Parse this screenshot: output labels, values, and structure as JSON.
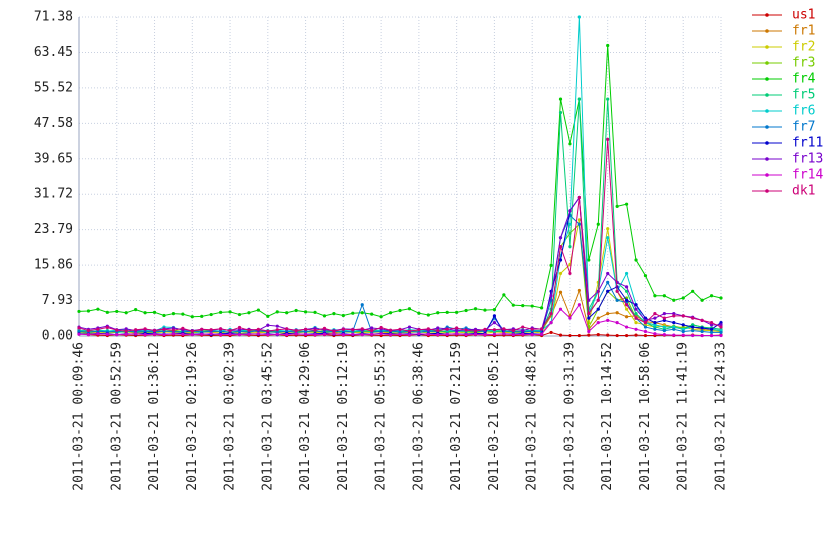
{
  "chart_data": {
    "type": "line",
    "categories": [
      "2011-03-21 00:09:46",
      null,
      null,
      null,
      "2011-03-21 00:52:59",
      null,
      null,
      null,
      "2011-03-21 01:36:12",
      null,
      null,
      null,
      "2011-03-21 02:19:26",
      null,
      null,
      null,
      "2011-03-21 03:02:39",
      null,
      null,
      null,
      "2011-03-21 03:45:52",
      null,
      null,
      null,
      "2011-03-21 04:29:06",
      null,
      null,
      null,
      "2011-03-21 05:12:19",
      null,
      null,
      null,
      "2011-03-21 05:55:32",
      null,
      null,
      null,
      "2011-03-21 06:38:46",
      null,
      null,
      null,
      "2011-03-21 07:21:59",
      null,
      null,
      null,
      "2011-03-21 08:05:12",
      null,
      null,
      null,
      "2011-03-21 08:48:26",
      null,
      null,
      null,
      "2011-03-21 09:31:39",
      null,
      null,
      null,
      "2011-03-21 10:14:52",
      null,
      null,
      null,
      "2011-03-21 10:58:06",
      null,
      null,
      null,
      "2011-03-21 11:41:19",
      null,
      null,
      null,
      "2011-03-21 12:24:33"
    ],
    "ylim": [
      0,
      71.38
    ],
    "yticks": [
      {
        "value": 0,
        "label": "0.00"
      },
      7.93,
      15.86,
      23.79,
      31.72,
      39.65,
      47.58,
      55.52,
      63.45,
      71.38
    ],
    "grid": true,
    "legend": "right",
    "series": [
      {
        "name": "us1",
        "color": "#cc0000",
        "values": [
          1.5,
          0.3,
          0.2,
          0.1,
          0.3,
          0.2,
          0.1,
          0.2,
          0.3,
          0.1,
          0.2,
          0.1,
          0.3,
          0.2,
          0.1,
          0.2,
          0.1,
          0.3,
          0.2,
          0.1,
          0.2,
          0.3,
          0.1,
          0.2,
          0.1,
          0.2,
          0.3,
          0.1,
          0.2,
          0.1,
          0.3,
          0.2,
          0.1,
          0.2,
          0.1,
          0.2,
          0.3,
          0.1,
          0.2,
          0.1,
          0.2,
          0.1,
          0.3,
          0.2,
          0.1,
          0.2,
          0.1,
          0.2,
          0.3,
          0.1,
          0.8,
          0.2,
          0.1,
          0.1,
          0.2,
          0.3,
          0.2,
          0.1,
          0.1,
          0.2,
          0.1,
          0.1,
          0.2,
          0.1,
          0.1,
          0.2,
          0.1,
          0.1,
          0.2
        ]
      },
      {
        "name": "fr1",
        "color": "#cc7700",
        "values": [
          1.2,
          1.0,
          0.8,
          1.1,
          0.9,
          1.3,
          0.7,
          1.0,
          1.2,
          0.9,
          1.1,
          0.8,
          1.0,
          1.2,
          0.9,
          1.1,
          0.7,
          1.0,
          1.3,
          0.9,
          1.0,
          1.2,
          0.8,
          1.1,
          0.9,
          1.0,
          1.2,
          0.8,
          1.1,
          1.0,
          0.9,
          1.2,
          1.0,
          0.8,
          1.1,
          1.3,
          0.9,
          1.0,
          1.2,
          0.8,
          1.0,
          1.1,
          0.9,
          1.2,
          1.0,
          0.8,
          1.1,
          1.0,
          0.9,
          1.2,
          4.5,
          9.8,
          4.5,
          10.2,
          1.5,
          4,
          5,
          5.2,
          4.3,
          4.5,
          3.2,
          3,
          2.5,
          2,
          1.8,
          2,
          1.5,
          1.2,
          1.0
        ]
      },
      {
        "name": "fr2",
        "color": "#cccc00",
        "values": [
          0.8,
          0.6,
          0.9,
          0.7,
          0.8,
          1.0,
          0.6,
          0.8,
          0.7,
          0.9,
          0.8,
          0.6,
          0.7,
          0.9,
          0.8,
          0.7,
          1.0,
          0.6,
          0.8,
          0.7,
          0.9,
          0.8,
          0.6,
          0.7,
          0.9,
          0.8,
          0.7,
          0.6,
          0.9,
          0.8,
          0.7,
          0.8,
          0.9,
          0.6,
          0.7,
          0.8,
          0.9,
          0.7,
          0.6,
          0.8,
          0.9,
          0.7,
          0.8,
          0.6,
          0.9,
          0.8,
          0.7,
          0.8,
          0.9,
          0.7,
          3,
          14,
          16,
          26,
          3,
          12,
          24,
          10,
          6,
          3,
          2.5,
          2,
          2.3,
          1.8,
          2,
          1.5,
          1.3,
          1.2,
          1
        ]
      },
      {
        "name": "fr3",
        "color": "#77cc00",
        "values": [
          1.0,
          1.2,
          0.9,
          1.1,
          1.0,
          0.8,
          1.2,
          1.0,
          0.9,
          1.1,
          1.3,
          1.0,
          0.9,
          1.1,
          1.2,
          1.0,
          0.8,
          1.1,
          1.0,
          1.2,
          0.9,
          1.1,
          1.0,
          1.3,
          0.9,
          1.0,
          1.1,
          1.2,
          0.9,
          1.0,
          1.1,
          1.0,
          1.2,
          0.9,
          1.1,
          1.0,
          1.3,
          1.0,
          0.9,
          1.1,
          1.0,
          1.2,
          0.9,
          1.1,
          1.0,
          1.2,
          1.0,
          0.9,
          1.1,
          1.0,
          5,
          20,
          23,
          25,
          2,
          6,
          10,
          8,
          8.5,
          4,
          3,
          2.5,
          2,
          2.2,
          1.8,
          2.5,
          2,
          1.5,
          1.2
        ]
      },
      {
        "name": "fr4",
        "color": "#00cc00",
        "values": [
          5.5,
          5.6,
          6.0,
          5.3,
          5.5,
          5.2,
          5.9,
          5.2,
          5.3,
          4.6,
          5.0,
          4.9,
          4.3,
          4.4,
          4.8,
          5.3,
          5.4,
          4.8,
          5.2,
          5.8,
          4.4,
          5.4,
          5.2,
          5.7,
          5.4,
          5.3,
          4.5,
          5.0,
          4.6,
          5.1,
          5.2,
          4.9,
          4.3,
          5.2,
          5.7,
          6.1,
          5.1,
          4.7,
          5.2,
          5.3,
          5.3,
          5.7,
          6.1,
          5.8,
          5.9,
          9.2,
          6.9,
          6.8,
          6.7,
          6.3,
          15.8,
          53,
          43,
          53,
          17,
          25,
          65,
          29,
          29.5,
          17,
          13.5,
          9,
          9,
          8,
          8.5,
          10,
          8,
          9,
          8.5
        ]
      },
      {
        "name": "fr5",
        "color": "#00cc77",
        "values": [
          1.0,
          0.9,
          1.1,
          1.2,
          0.8,
          1.0,
          1.1,
          0.9,
          1.0,
          1.2,
          0.9,
          1.1,
          1.0,
          0.8,
          1.2,
          1.0,
          0.9,
          1.1,
          1.0,
          1.2,
          0.9,
          1.0,
          1.1,
          0.8,
          1.0,
          1.2,
          0.9,
          1.1,
          1.0,
          0.9,
          1.1,
          1.0,
          1.2,
          0.9,
          1.0,
          1.1,
          0.8,
          1.0,
          1.2,
          0.9,
          1.1,
          1.0,
          0.9,
          1.2,
          1.0,
          1.1,
          0.9,
          1.0,
          1.2,
          1.1,
          6,
          50,
          20,
          53,
          6,
          10,
          53,
          12,
          10,
          5,
          3,
          2,
          1.5,
          2,
          1.5,
          2.5,
          2,
          1.8,
          1.5
        ]
      },
      {
        "name": "fr6",
        "color": "#00cccc",
        "values": [
          1.3,
          1.2,
          1.4,
          1.1,
          1.3,
          1.5,
          1.2,
          1.3,
          1.1,
          2.0,
          1.9,
          1.3,
          1.2,
          1.4,
          1.3,
          1.1,
          1.5,
          1.2,
          1.3,
          1.4,
          1.2,
          1.3,
          1.1,
          1.4,
          1.3,
          1.9,
          1.2,
          1.4,
          1.3,
          1.1,
          1.3,
          1.4,
          1.2,
          1.3,
          1.1,
          1.4,
          1.3,
          1.2,
          1.5,
          1.3,
          1.1,
          1.2,
          1.4,
          1.3,
          1.2,
          1.5,
          1.3,
          1.4,
          1.2,
          1.3,
          3,
          18,
          25,
          71.38,
          5,
          10,
          22,
          10,
          14,
          7,
          3,
          2.5,
          2,
          2,
          1.5,
          2,
          1.8,
          1.5,
          1.2
        ]
      },
      {
        "name": "fr7",
        "color": "#0077cc",
        "values": [
          1.0,
          0.8,
          1.1,
          0.9,
          1.0,
          1.2,
          0.8,
          1.0,
          0.9,
          1.1,
          1.0,
          0.8,
          1.2,
          0.9,
          1.0,
          1.1,
          0.8,
          1.0,
          0.9,
          1.2,
          1.0,
          0.8,
          1.1,
          0.9,
          1.0,
          1.2,
          0.8,
          1.0,
          0.9,
          1.1,
          7.0,
          0.9,
          1.0,
          1.2,
          0.8,
          1.0,
          0.9,
          1.1,
          1.0,
          2.0,
          1.5,
          1.8,
          1.2,
          1.0,
          4.0,
          1.2,
          1.0,
          0.9,
          1.1,
          1.0,
          8,
          22,
          27,
          25,
          5,
          8,
          12,
          8,
          7.5,
          4,
          2,
          1.5,
          1.2,
          1.5,
          1,
          1.2,
          1,
          0.8,
          0.8
        ]
      },
      {
        "name": "fr11",
        "color": "#0000cc",
        "values": [
          0.5,
          0.4,
          0.6,
          0.5,
          0.3,
          0.5,
          0.4,
          0.6,
          0.5,
          0.4,
          0.5,
          0.6,
          0.4,
          0.5,
          0.3,
          0.5,
          0.6,
          0.4,
          0.5,
          0.4,
          0.5,
          0.3,
          0.6,
          0.5,
          0.4,
          0.5,
          0.6,
          0.4,
          0.5,
          0.3,
          0.5,
          0.4,
          0.6,
          0.5,
          0.4,
          0.5,
          0.3,
          0.5,
          0.6,
          0.4,
          0.5,
          0.4,
          0.6,
          0.5,
          4.5,
          0.5,
          0.4,
          0.6,
          0.5,
          0.4,
          10,
          17,
          28,
          31,
          4,
          6,
          10,
          11,
          8,
          7,
          4,
          3,
          3.5,
          3,
          2.5,
          2,
          1.8,
          1.5,
          3
        ]
      },
      {
        "name": "fr13",
        "color": "#7700cc",
        "values": [
          2.0,
          1.5,
          1.8,
          2.2,
          1.4,
          1.6,
          1.2,
          1.5,
          1.3,
          1.6,
          1.8,
          1.4,
          1.2,
          1.5,
          1.3,
          1.6,
          1.2,
          1.4,
          1.5,
          1.3,
          2.4,
          2.2,
          1.6,
          1.3,
          1.5,
          1.7,
          1.4,
          1.2,
          1.6,
          1.5,
          1.3,
          1.8,
          1.6,
          1.2,
          1.4,
          2.0,
          1.5,
          1.3,
          1.8,
          1.6,
          1.2,
          1.4,
          1.5,
          1.3,
          3.0,
          1.4,
          1.6,
          1.2,
          1.8,
          1.5,
          9,
          22,
          28,
          31,
          8,
          10,
          14,
          12,
          11,
          6,
          3.5,
          4,
          5,
          5,
          4.5,
          4.2,
          3.5,
          2.5,
          2.5
        ]
      },
      {
        "name": "fr14",
        "color": "#cc00cc",
        "values": [
          0.4,
          0.3,
          0.5,
          0.4,
          0.3,
          0.4,
          0.5,
          0.3,
          0.4,
          0.3,
          0.5,
          0.4,
          0.3,
          0.4,
          0.5,
          0.3,
          0.4,
          0.3,
          0.4,
          0.5,
          0.3,
          0.4,
          0.3,
          0.5,
          0.4,
          0.3,
          0.4,
          0.5,
          0.3,
          0.4,
          0.3,
          0.4,
          0.5,
          0.3,
          0.4,
          0.3,
          0.5,
          0.4,
          0.3,
          0.4,
          0.5,
          0.3,
          0.4,
          0.3,
          0.4,
          0.5,
          0.3,
          0.4,
          0.3,
          0.4,
          3,
          6,
          4,
          7,
          1,
          3,
          3.5,
          3,
          2,
          1.5,
          1,
          0.5,
          0.3,
          0.2,
          0.2,
          0.1,
          0.1,
          0.1,
          0.1
        ]
      },
      {
        "name": "dk1",
        "color": "#cc0077",
        "values": [
          1.8,
          1.2,
          1.5,
          1.9,
          1.3,
          1.1,
          1.4,
          1.6,
          1.2,
          1.5,
          1.3,
          1.7,
          1.1,
          1.5,
          1.4,
          1.6,
          1.2,
          1.9,
          1.3,
          1.5,
          1.1,
          1.4,
          1.6,
          1.2,
          1.5,
          1.3,
          1.7,
          1.1,
          1.5,
          1.4,
          1.6,
          1.2,
          1.9,
          1.3,
          1.5,
          1.1,
          1.4,
          1.6,
          1.2,
          1.5,
          1.8,
          1.3,
          1.1,
          1.5,
          1.4,
          1.6,
          1.2,
          2.0,
          1.5,
          1.6,
          5,
          20,
          14,
          31,
          5,
          8,
          44,
          10,
          7,
          4,
          3,
          5,
          4,
          4.5,
          4.5,
          4,
          3.5,
          3,
          2
        ]
      }
    ]
  }
}
